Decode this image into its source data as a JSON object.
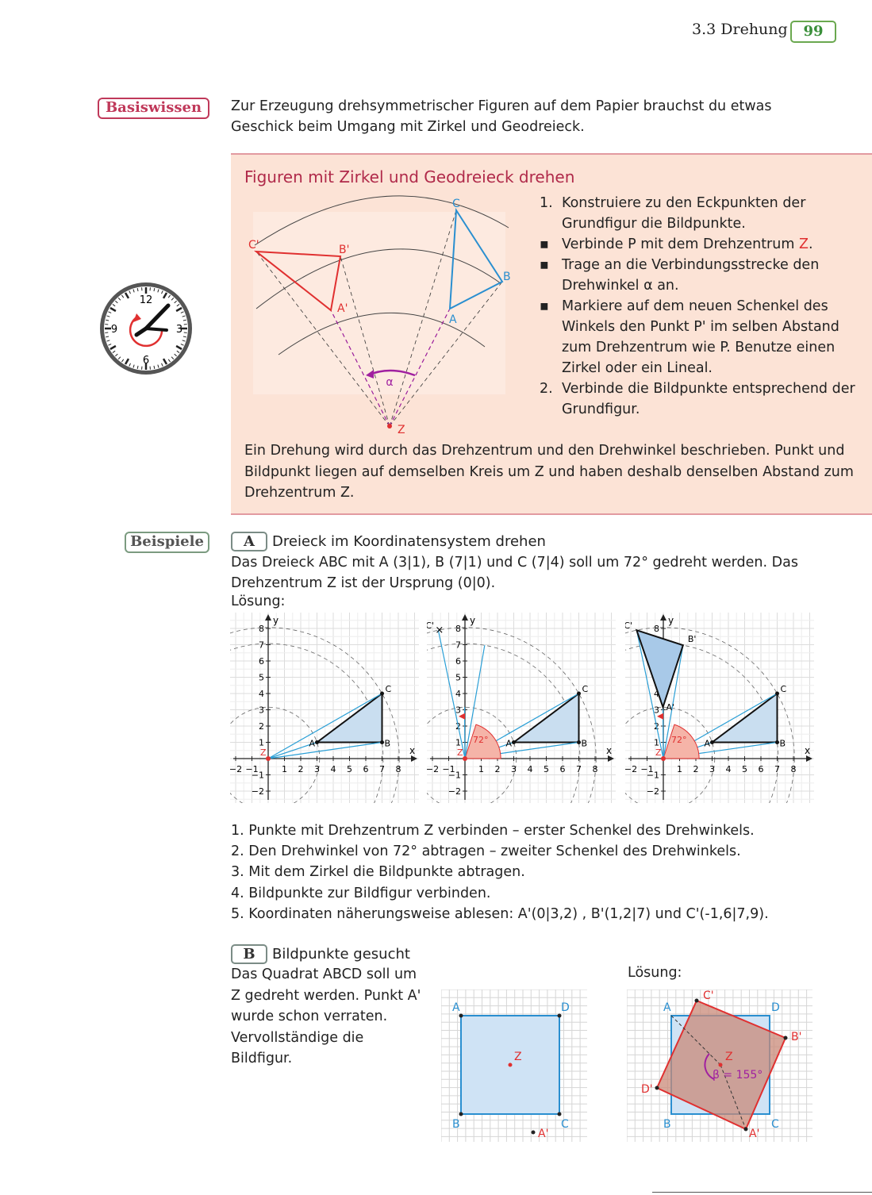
{
  "header": {
    "section": "3.3 Drehung",
    "page_number": "99"
  },
  "side_tags": {
    "basiswissen": "Basiswissen",
    "beispiele": "Beispiele"
  },
  "intro": "Zur Erzeugung drehsymmetrischer Figuren auf dem Papier brauchst du etwas Geschick beim Umgang mit Zirkel und Geodreieck.",
  "rule_box": {
    "title": "Figuren mit Zirkel und Geodreieck drehen",
    "steps": [
      {
        "marker": "1.",
        "text": "Konstruiere zu den Eckpunkten der Grundfigur die Bildpunkte."
      },
      {
        "marker": "▪",
        "text": "Verbinde P mit dem Drehzentrum ",
        "accent": "Z",
        "after": "."
      },
      {
        "marker": "▪",
        "text": "Trage an die Verbindungsstrecke den Drehwinkel α an."
      },
      {
        "marker": "▪",
        "text": "Markiere auf dem neuen Schenkel des Winkels den Punkt P' im selben Abstand zum Drehzentrum wie P. Benutze einen Zirkel oder ein Lineal."
      },
      {
        "marker": "2.",
        "text": "Verbinde die Bildpunkte entsprechend der Grundfigur."
      }
    ],
    "summary": "Ein Drehung wird durch das Drehzentrum und den Drehwinkel beschrieben. Punkt und Bildpunkt liegen auf demselben Kreis um Z und haben deshalb denselben Abstand zum Drehzentrum Z.",
    "figure_labels": {
      "C": "C",
      "B": "B",
      "A": "A",
      "C1": "C'",
      "B1": "B'",
      "A1": "A'",
      "Z": "Z",
      "alpha": "α"
    },
    "clock_labels": {
      "n12": "12",
      "n3": "3",
      "n6": "6",
      "n9": "9"
    }
  },
  "example_a": {
    "letter": "A",
    "title": "Dreieck im Koordinatensystem drehen",
    "text": "Das Dreieck ABC mit A (3|1), B (7|1) und C (7|4) soll um 72° gedreht werden. Das Drehzentrum Z  ist der Ursprung (0|0).",
    "solution_label": "Lösung:",
    "angle_label": "72°",
    "axis": {
      "x": "x",
      "y": "y",
      "x_ticks": [
        "−2",
        "−1",
        "1",
        "2",
        "3",
        "4",
        "5",
        "6",
        "7",
        "8"
      ],
      "y_ticks": [
        "−2",
        "−1",
        "1",
        "2",
        "3",
        "4",
        "5",
        "6",
        "7",
        "8"
      ]
    },
    "steps": [
      "1. Punkte mit Drehzentrum Z verbinden – erster Schenkel des Drehwinkels.",
      "2. Den Drehwinkel von 72° abtragen – zweiter Schenkel des Drehwinkels.",
      "3. Mit dem Zirkel die Bildpunkte abtragen.",
      "4. Bildpunkte zur Bildfigur verbinden.",
      "5. Koordinaten näherungsweise ablesen: A'(0|3,2) , B'(1,2|7) und C'(-1,6|7,9)."
    ]
  },
  "example_b": {
    "letter": "B",
    "title": "Bildpunkte gesucht",
    "text": "Das Quadrat ABCD soll um Z gedreht werden. Punkt A' wurde schon verraten. Vervollständige die Bildfigur.",
    "solution_label": "Lösung:",
    "angle_label": "β = 155°"
  },
  "colors": {
    "accent_red": "#e03030",
    "rule_title": "#b02a4a",
    "blue": "#2a8fd0",
    "box_bg": "#fce3d6",
    "page_green": "#3a8f3a",
    "purple": "#a020a0"
  }
}
